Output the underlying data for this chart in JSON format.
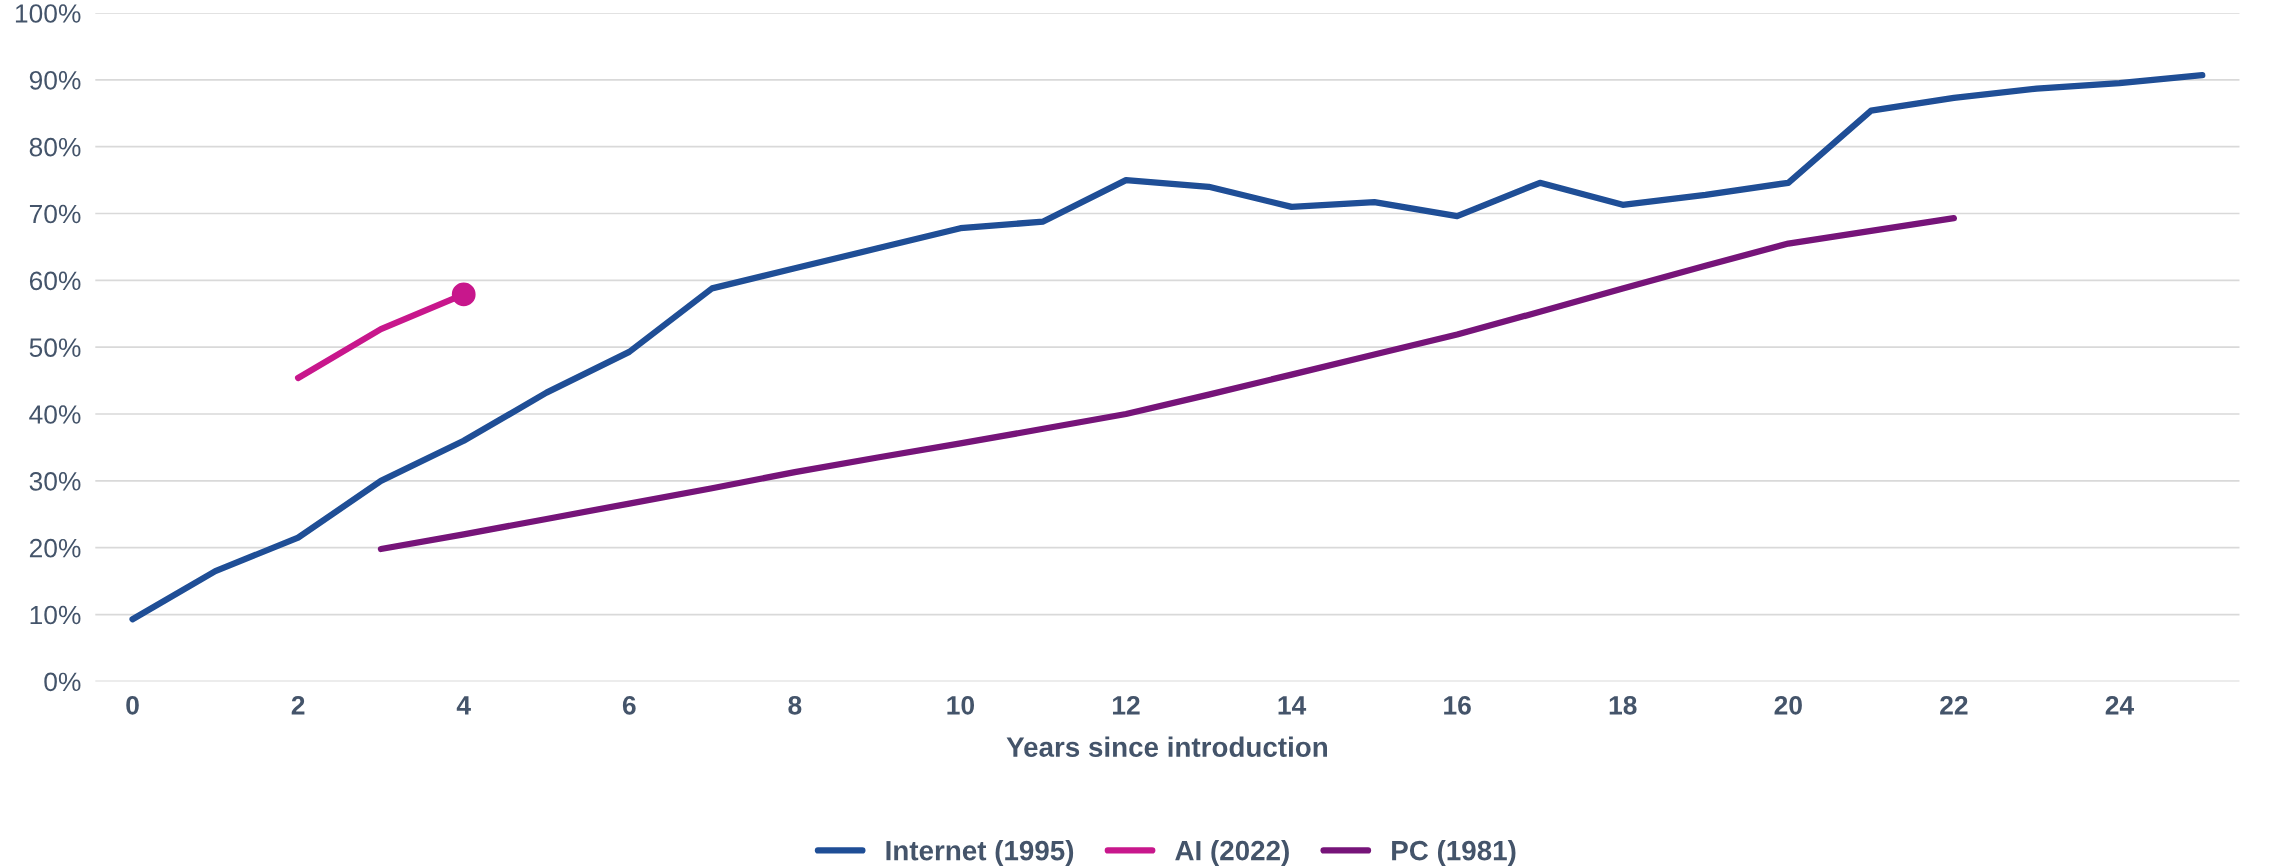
{
  "chart_data": {
    "type": "line",
    "xlabel": "Years since introduction",
    "xlim": [
      -0.45,
      25.45
    ],
    "xticks": [
      0,
      2,
      4,
      6,
      8,
      10,
      12,
      14,
      16,
      18,
      20,
      22,
      24
    ],
    "ylim": [
      0,
      100
    ],
    "yticks": [
      {
        "value": 0,
        "label": "0%"
      },
      {
        "value": 10,
        "label": "10%"
      },
      {
        "value": 20,
        "label": "20%"
      },
      {
        "value": 30,
        "label": "30%"
      },
      {
        "value": 40,
        "label": "40%"
      },
      {
        "value": 50,
        "label": "50%"
      },
      {
        "value": 60,
        "label": "60%"
      },
      {
        "value": 70,
        "label": "70%"
      },
      {
        "value": 80,
        "label": "80%"
      },
      {
        "value": 90,
        "label": "90%"
      },
      {
        "value": 100,
        "label": "100%"
      }
    ],
    "grid": "y",
    "legend": "bottom",
    "marker": "none",
    "line_style": "solid",
    "series": [
      {
        "name": "Internet (1995)",
        "color": "#1f4e96",
        "x": [
          0,
          1,
          2,
          3,
          4,
          5,
          6,
          7,
          8,
          9,
          10,
          11,
          12,
          13,
          14,
          15,
          16,
          17,
          18,
          19,
          20,
          21,
          22,
          23,
          24,
          25
        ],
        "values": [
          9.3,
          16.5,
          21.5,
          30,
          36,
          43.2,
          49.3,
          58.8,
          61.8,
          64.8,
          67.8,
          68.8,
          75,
          74,
          71,
          71.7,
          69.6,
          74.6,
          71.3,
          72.8,
          74.6,
          85.4,
          87.3,
          88.7,
          89.5,
          90.7
        ]
      },
      {
        "name": "AI (2022)",
        "color": "#c8178c",
        "x": [
          2,
          3,
          4
        ],
        "values": [
          45.4,
          52.7,
          57.9
        ]
      },
      {
        "name": "PC (1981)",
        "color": "#761479",
        "x": [
          3,
          4,
          5,
          6,
          7,
          8,
          9,
          10,
          11,
          12,
          13,
          14,
          15,
          16,
          17,
          18,
          19,
          20,
          21,
          22
        ],
        "values": [
          19.8,
          22,
          24.3,
          26.6,
          28.9,
          31.3,
          33.5,
          35.6,
          37.8,
          40,
          42.9,
          45.9,
          48.9,
          51.9,
          55.3,
          58.8,
          62.2,
          65.5,
          67.4,
          69.3
        ]
      },
      {
        "type": "scatter",
        "color": "#c8178c",
        "marker": "circle",
        "x": [
          4
        ],
        "values": [
          57.9
        ]
      }
    ]
  }
}
